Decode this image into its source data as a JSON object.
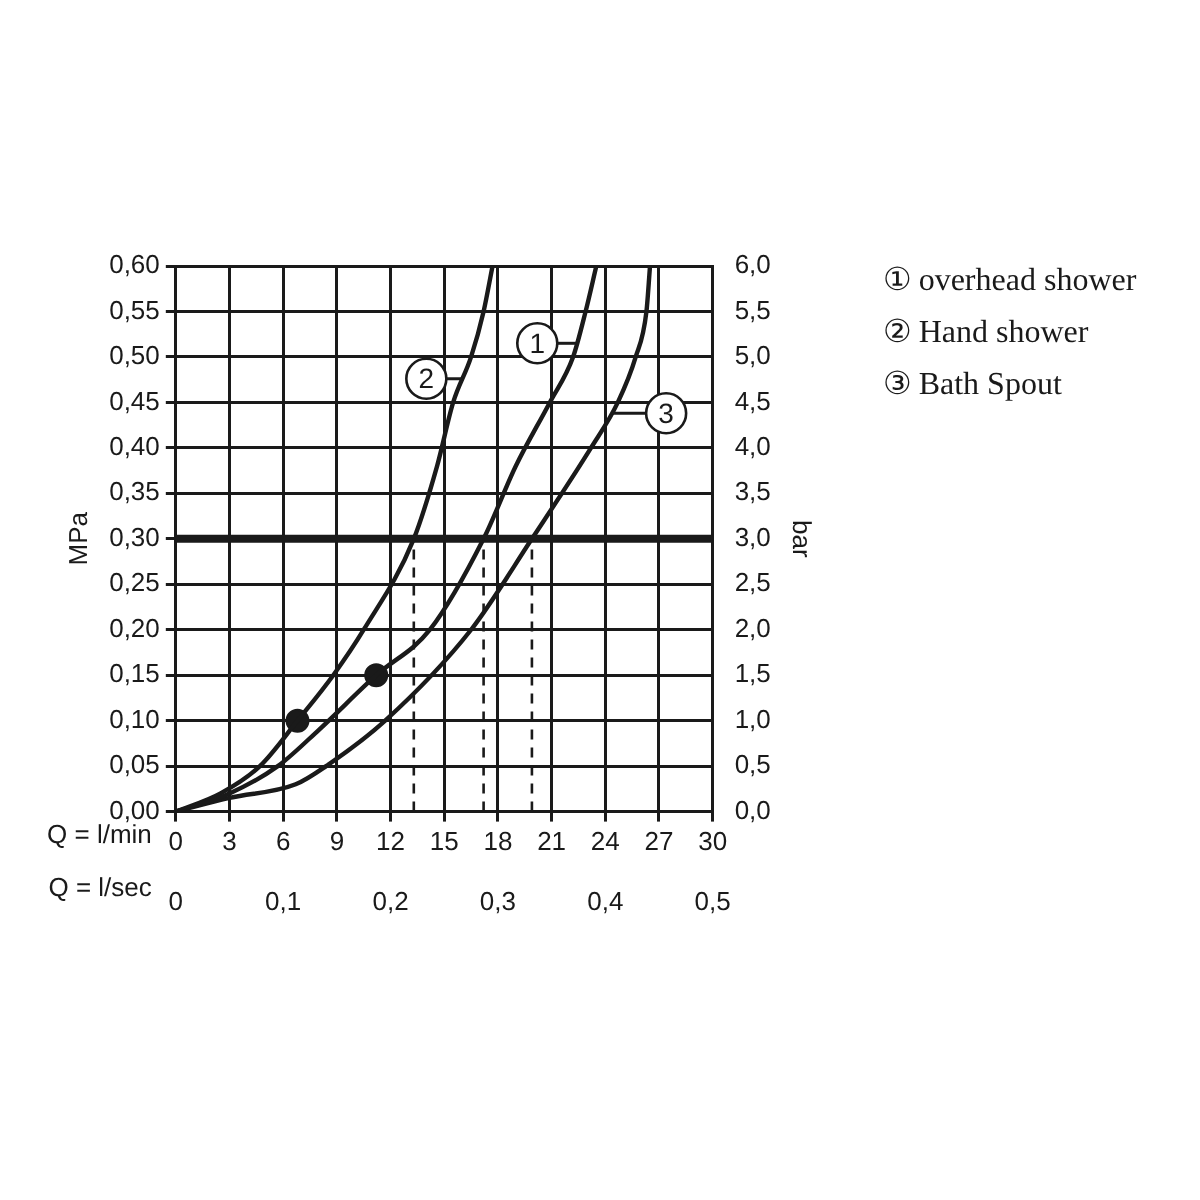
{
  "chart_data": {
    "type": "line",
    "xlabel": "Q = l/min",
    "x2label": "Q = l/sec",
    "ylabel": "MPa",
    "y2label": "bar",
    "series": [
      {
        "name": "① overhead shower",
        "color": "#1a1a1a",
        "x": [
          0,
          3,
          5.7,
          8,
          11.2,
          14.2,
          17.2,
          19,
          20.9,
          22.2,
          22.9,
          23.5
        ],
        "values": [
          0,
          0.02,
          0.05,
          0.09,
          0.15,
          0.2,
          0.3,
          0.38,
          0.45,
          0.5,
          0.55,
          0.6
        ]
      },
      {
        "name": "② Hand shower",
        "color": "#1a1a1a",
        "x": [
          0,
          2.5,
          4.7,
          6.8,
          8.8,
          10.5,
          13.3,
          14.6,
          15.5,
          16.5,
          17.2,
          17.7
        ],
        "values": [
          0,
          0.02,
          0.05,
          0.1,
          0.15,
          0.2,
          0.3,
          0.38,
          0.45,
          0.5,
          0.55,
          0.6
        ]
      },
      {
        "name": "③ Bath Spout",
        "color": "#1a1a1a",
        "x": [
          0,
          3,
          6.7,
          8.4,
          11.7,
          16.5,
          19.9,
          23.2,
          24.7,
          25.7,
          26.3,
          26.5
        ],
        "values": [
          0,
          0.015,
          0.03,
          0.05,
          0.1,
          0.2,
          0.3,
          0.4,
          0.45,
          0.5,
          0.55,
          0.6
        ]
      },
      {
        "type": "scatter",
        "color": "#1a1a1a",
        "marker": "circle",
        "x": [
          6.8,
          11.2
        ],
        "values": [
          0.1,
          0.15
        ]
      }
    ],
    "xlim": [
      0,
      30
    ],
    "xticks": [
      0,
      3,
      6,
      9,
      12,
      15,
      18,
      21,
      24,
      27,
      30
    ],
    "x2lim": [
      0,
      0.5
    ],
    "x2ticks": [
      0,
      {
        "value": 0.1,
        "label": "0,1"
      },
      {
        "value": 0.2,
        "label": "0,2"
      },
      {
        "value": 0.3,
        "label": "0,3"
      },
      {
        "value": 0.4,
        "label": "0,4"
      },
      {
        "value": 0.5,
        "label": "0,5"
      }
    ],
    "ylim": [
      0,
      0.6
    ],
    "yticks": [
      {
        "value": 0,
        "label": "0,00"
      },
      {
        "value": 0.05,
        "label": "0,05"
      },
      {
        "value": 0.1,
        "label": "0,10"
      },
      {
        "value": 0.15,
        "label": "0,15"
      },
      {
        "value": 0.2,
        "label": "0,20"
      },
      {
        "value": 0.25,
        "label": "0,25"
      },
      {
        "value": 0.3,
        "label": "0,30"
      },
      {
        "value": 0.35,
        "label": "0,35"
      },
      {
        "value": 0.4,
        "label": "0,40"
      },
      {
        "value": 0.45,
        "label": "0,45"
      },
      {
        "value": 0.5,
        "label": "0,50"
      },
      {
        "value": 0.55,
        "label": "0,55"
      },
      {
        "value": 0.6,
        "label": "0,60"
      }
    ],
    "y2lim": [
      0,
      6
    ],
    "y2ticks": [
      {
        "value": 0,
        "label": "0,0"
      },
      {
        "value": 0.5,
        "label": "0,5"
      },
      {
        "value": 1,
        "label": "1,0"
      },
      {
        "value": 1.5,
        "label": "1,5"
      },
      {
        "value": 2,
        "label": "2,0"
      },
      {
        "value": 2.5,
        "label": "2,5"
      },
      {
        "value": 3,
        "label": "3,0"
      },
      {
        "value": 3.5,
        "label": "3,5"
      },
      {
        "value": 4,
        "label": "4,0"
      },
      {
        "value": 4.5,
        "label": "4,5"
      },
      {
        "value": 5,
        "label": "5,0"
      },
      {
        "value": 5.5,
        "label": "5,5"
      },
      {
        "value": 6,
        "label": "6,0"
      }
    ],
    "ref_lines": [
      {
        "axis": "y",
        "value": 0.3,
        "line_style": "solid"
      },
      {
        "axis": "x",
        "value": 13.3,
        "line_style": "dashed"
      },
      {
        "axis": "x",
        "value": 17.2,
        "line_style": "dashed"
      },
      {
        "axis": "x",
        "value": 19.9,
        "line_style": "dashed"
      }
    ],
    "annotations": [
      {
        "text": "1",
        "x": 20.2,
        "y": 0.515
      },
      {
        "text": "2",
        "x": 14,
        "y": 0.476
      },
      {
        "text": "3",
        "x": 27.4,
        "y": 0.438
      }
    ],
    "grid": true,
    "legend": "right",
    "line_style": "solid",
    "marker": "none"
  }
}
